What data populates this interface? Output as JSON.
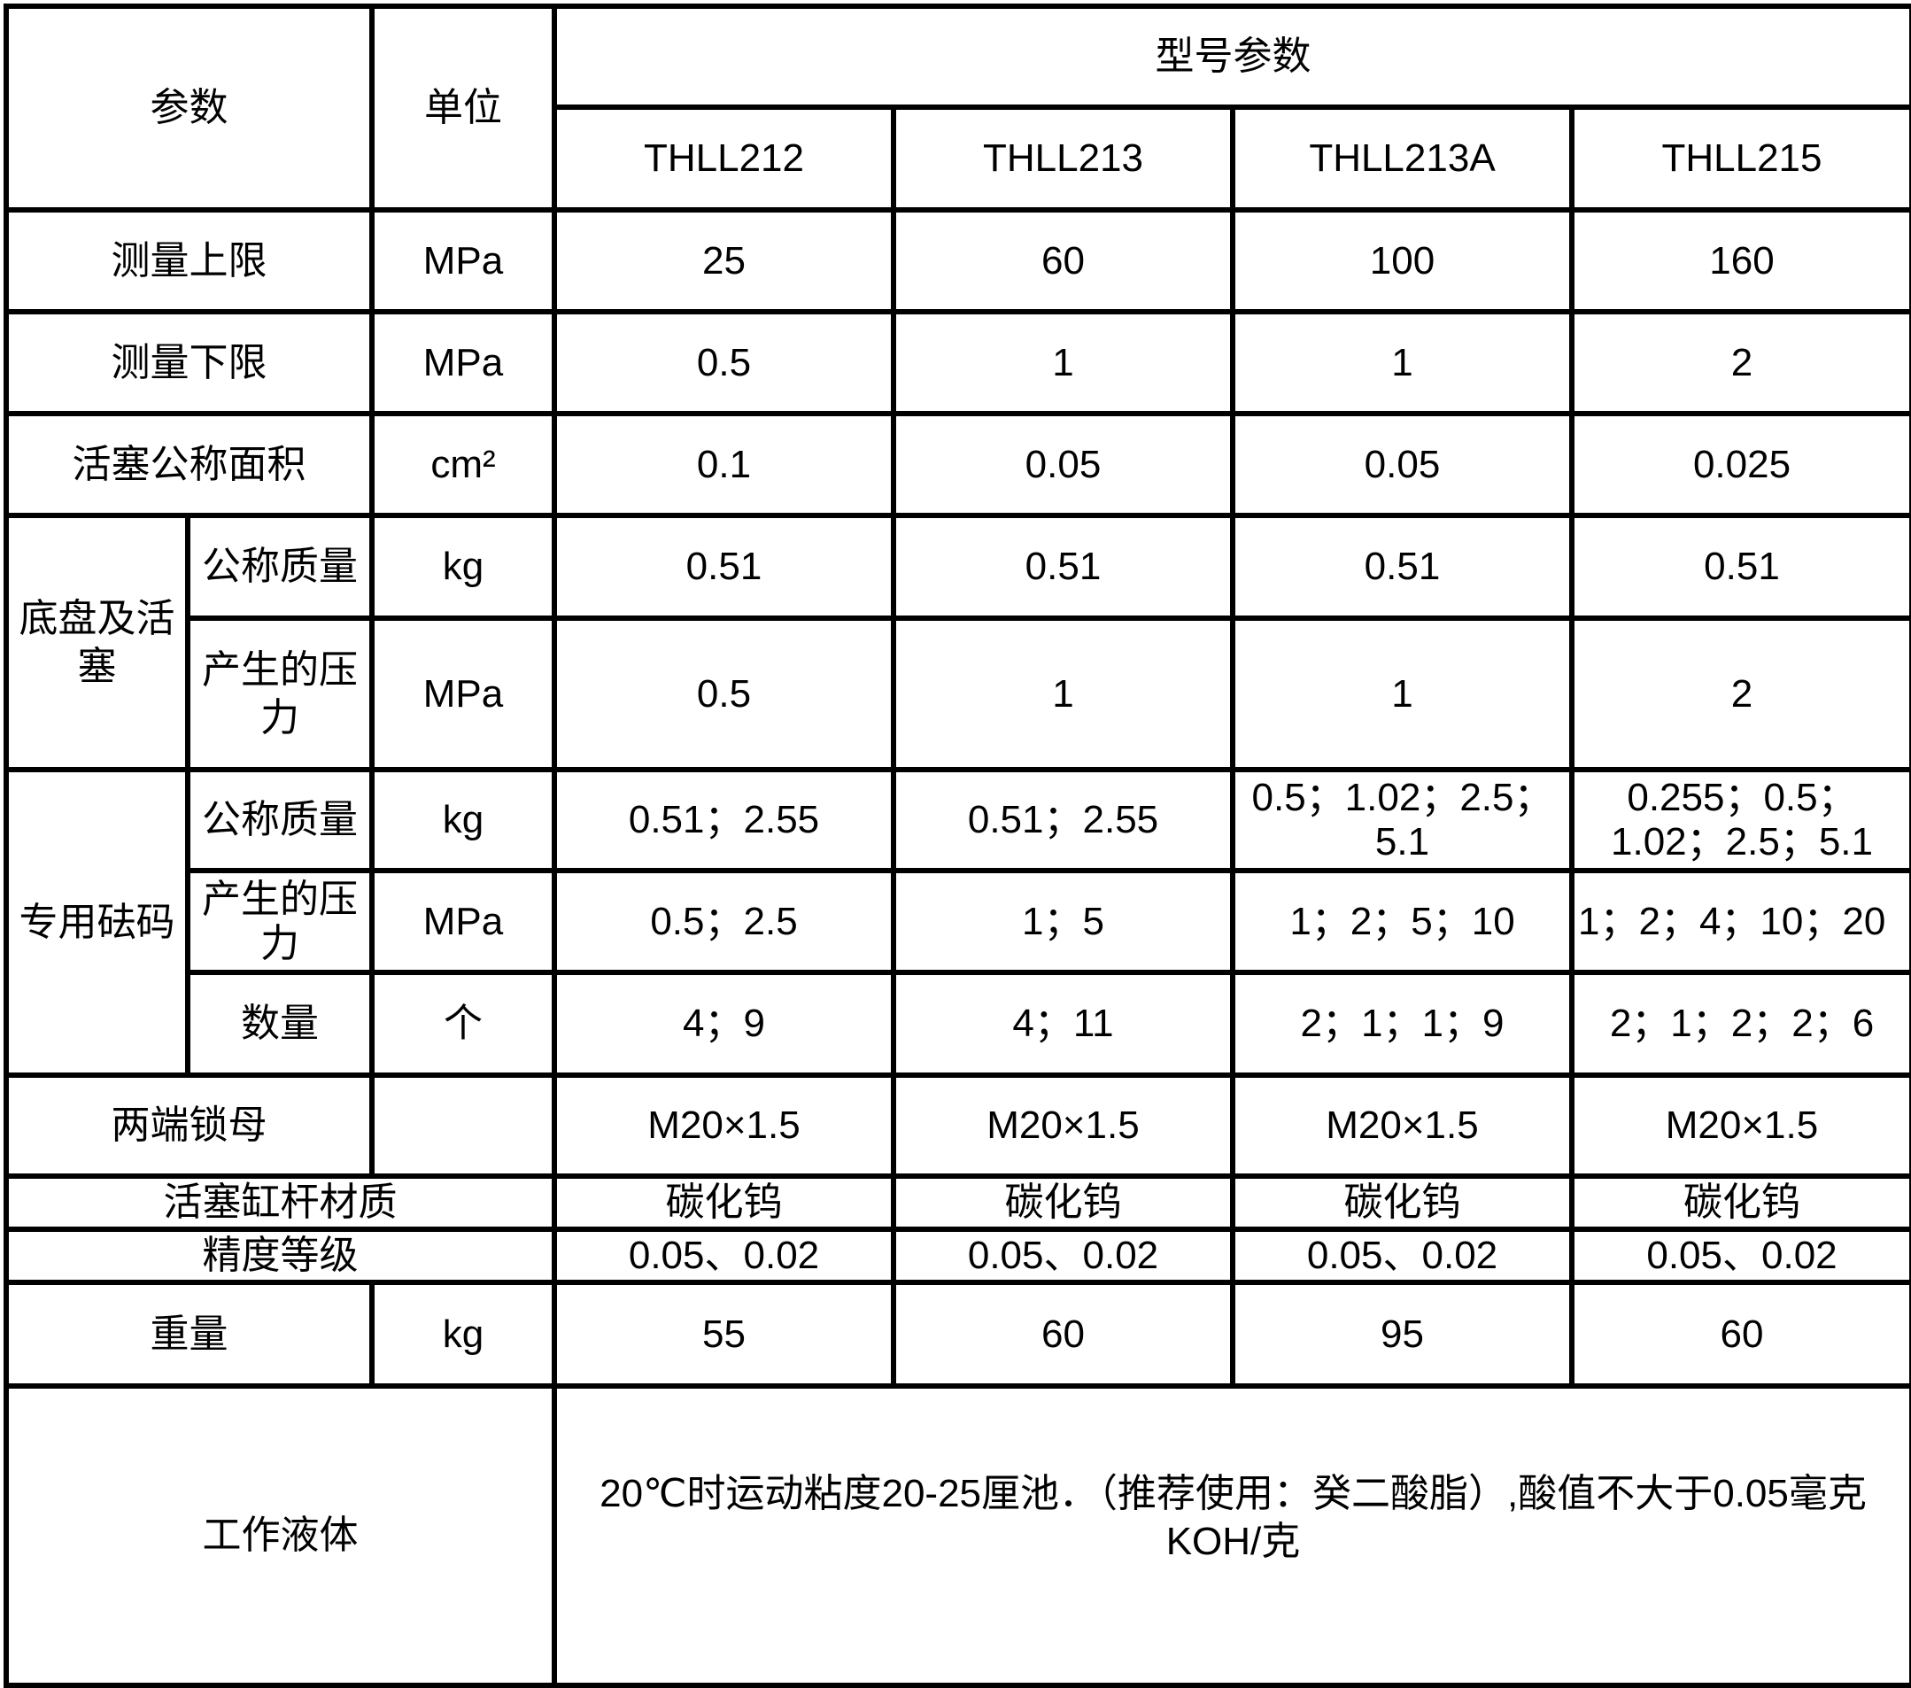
{
  "header": {
    "param": "参数",
    "unit": "单位",
    "model_params": "型号参数",
    "models": [
      "THLL212",
      "THLL213",
      "THLL213A",
      "THLL215"
    ]
  },
  "rows": {
    "upper_limit": {
      "label": "测量上限",
      "unit": "MPa",
      "values": [
        "25",
        "60",
        "100",
        "160"
      ]
    },
    "lower_limit": {
      "label": "测量下限",
      "unit": "MPa",
      "values": [
        "0.5",
        "1",
        "1",
        "2"
      ]
    },
    "piston_area": {
      "label": "活塞公称面积",
      "unit": "cm²",
      "values": [
        "0.1",
        "0.05",
        "0.05",
        "0.025"
      ]
    },
    "base_piston": {
      "group": "底盘及活塞",
      "mass": {
        "label": "公称质量",
        "unit": "kg",
        "values": [
          "0.51",
          "0.51",
          "0.51",
          "0.51"
        ]
      },
      "pressure": {
        "label": "产生的压力",
        "unit": "MPa",
        "values": [
          "0.5",
          "1",
          "1",
          "2"
        ]
      }
    },
    "weights": {
      "group": "专用砝码",
      "mass": {
        "label": "公称质量",
        "unit": "kg",
        "values": [
          "0.51；2.55",
          "0.51；2.55",
          "0.5；1.02；2.5；5.1",
          "0.255；0.5；1.02；2.5；5.1"
        ]
      },
      "pressure": {
        "label": "产生的压力",
        "unit": "MPa",
        "values": [
          "0.5；2.5",
          "1；5",
          "1；2；5；10",
          "1；2；4；10；20"
        ]
      },
      "count": {
        "label": "数量",
        "unit": "个",
        "values": [
          "4；9",
          "4；11",
          "2；1；1；9",
          "2；1；2；2；6"
        ]
      }
    },
    "lock_nut": {
      "label": "两端锁母",
      "unit": "",
      "values": [
        "M20×1.5",
        "M20×1.5",
        "M20×1.5",
        "M20×1.5"
      ]
    },
    "rod_material": {
      "label": "活塞缸杆材质",
      "values": [
        "碳化钨",
        "碳化钨",
        "碳化钨",
        "碳化钨"
      ]
    },
    "accuracy": {
      "label": "精度等级",
      "values": [
        "0.05、0.02",
        "0.05、0.02",
        "0.05、0.02",
        "0.05、0.02"
      ]
    },
    "weight": {
      "label": "重量",
      "unit": "kg",
      "values": [
        "55",
        "60",
        "95",
        "60"
      ]
    },
    "fluid": {
      "label": "工作液体",
      "value": "20℃时运动粘度20-25厘池．（推荐使用：癸二酸脂）,酸值不大于0.05毫克 KOH/克"
    }
  }
}
